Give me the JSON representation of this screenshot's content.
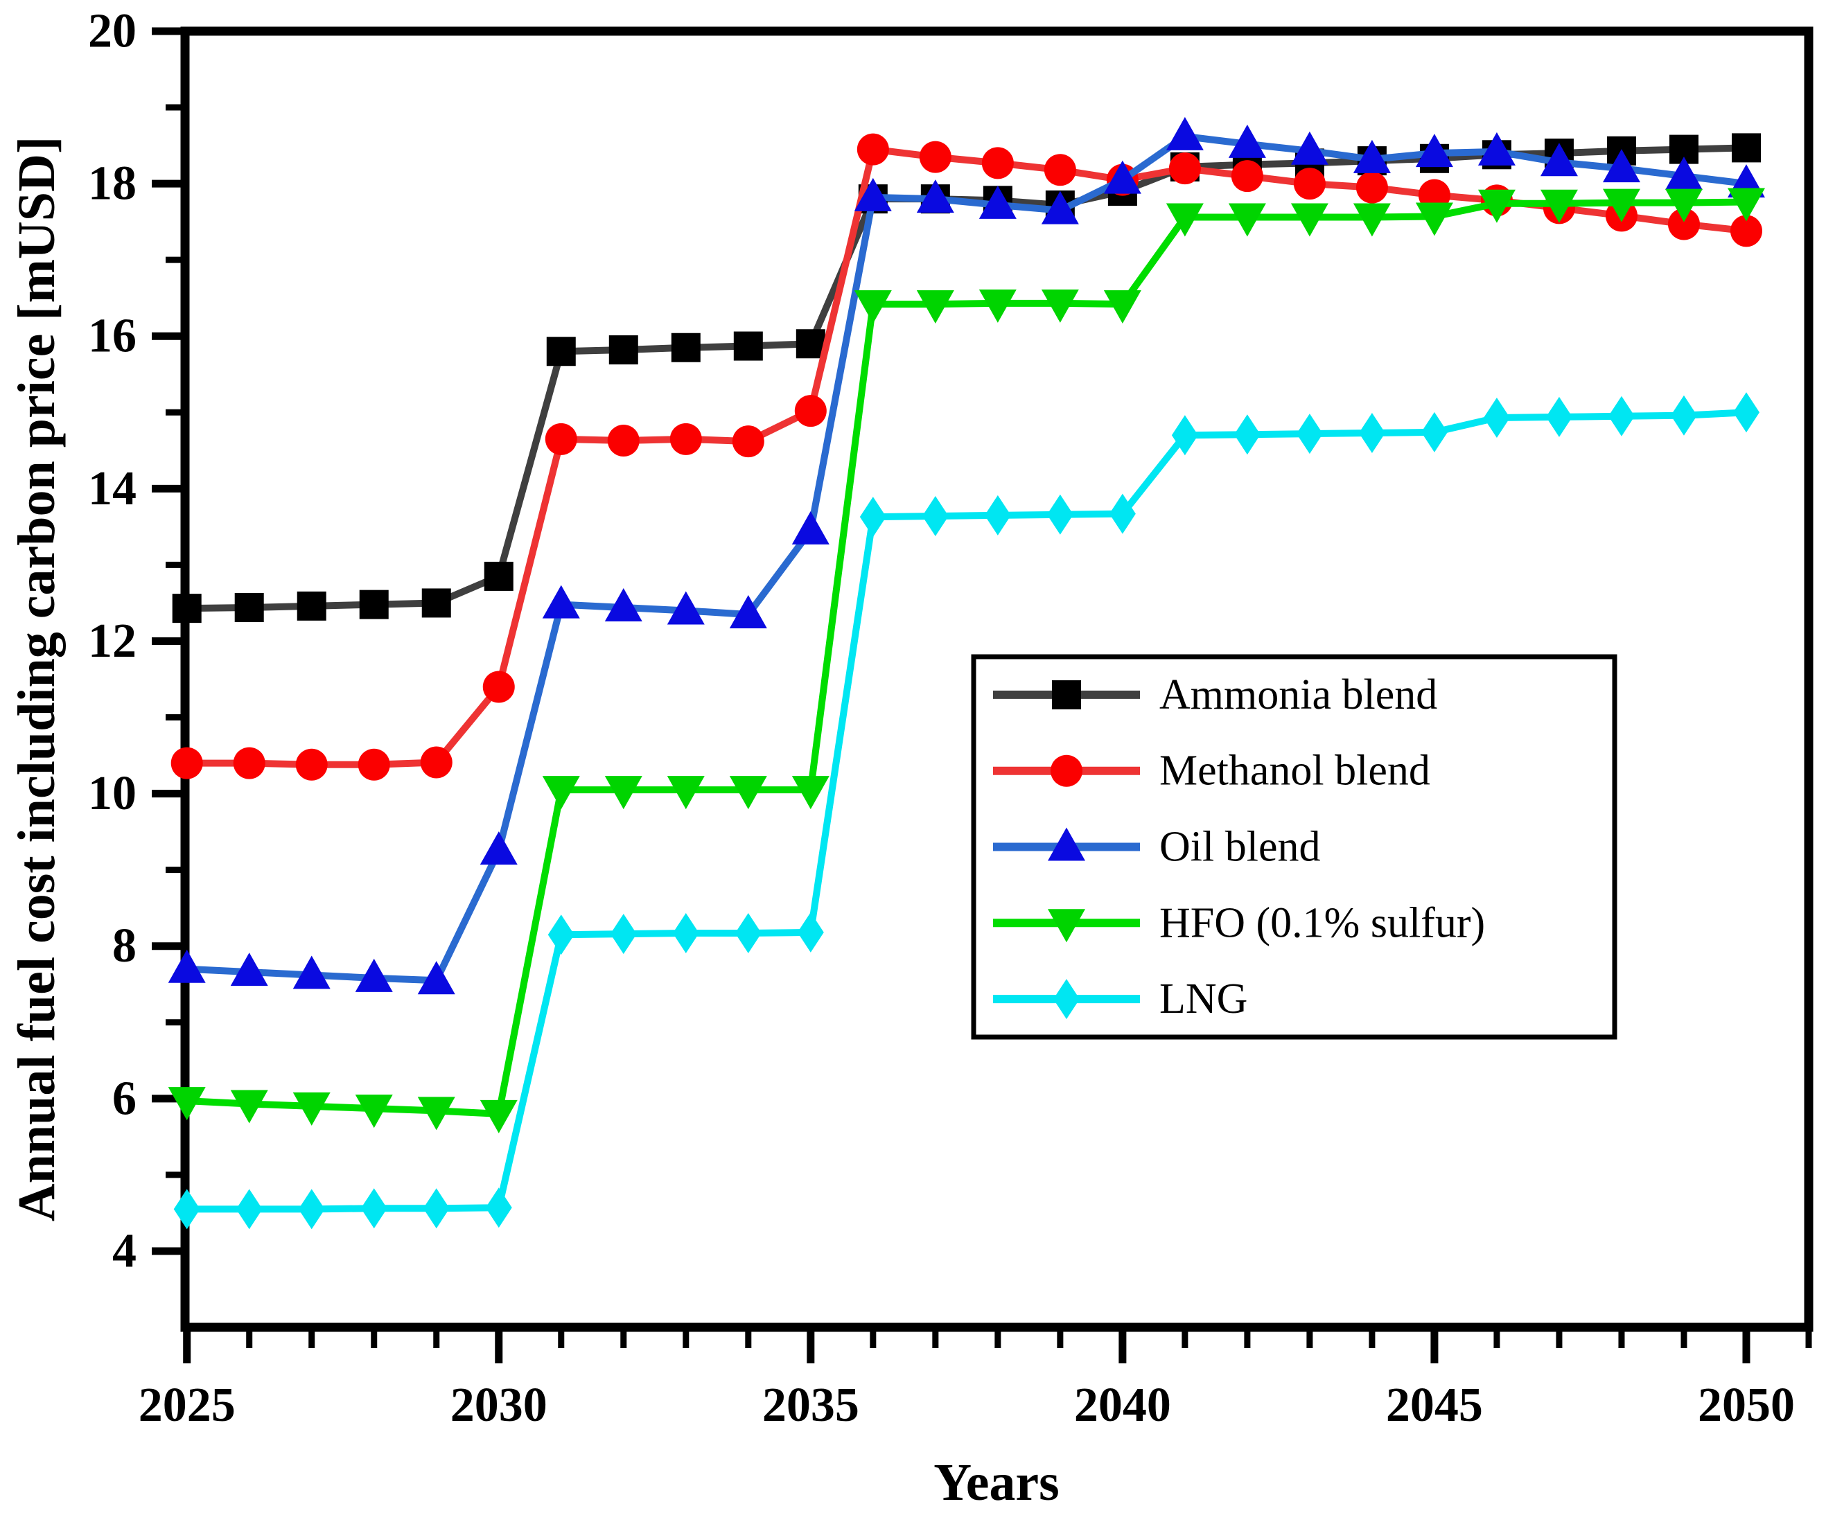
{
  "chart_data": {
    "type": "line",
    "title": "",
    "xlabel": "Years",
    "ylabel": "Annual fuel cost including carbon price [mUSD]",
    "xlim": [
      2024.97,
      2051.0
    ],
    "ylim": [
      3,
      20
    ],
    "grid": "off",
    "legend_position": "center-right",
    "x_major_ticks": [
      2025,
      2030,
      2035,
      2040,
      2045,
      2050
    ],
    "x_minor_tick_step": 1,
    "y_major_ticks": [
      4,
      6,
      8,
      10,
      12,
      14,
      16,
      18,
      20
    ],
    "y_minor_ticks": [
      5,
      7,
      9,
      11,
      13,
      15,
      17,
      19
    ],
    "x": [
      2025,
      2026,
      2027,
      2028,
      2029,
      2030,
      2031,
      2032,
      2033,
      2034,
      2035,
      2036,
      2037,
      2038,
      2039,
      2040,
      2041,
      2042,
      2043,
      2044,
      2045,
      2046,
      2047,
      2048,
      2049,
      2050
    ],
    "series": [
      {
        "name": "Ammonia blend",
        "marker": "square",
        "line_color": "#3f3f3f",
        "marker_color": "#000000",
        "values": [
          12.43,
          12.44,
          12.46,
          12.48,
          12.5,
          12.85,
          15.8,
          15.82,
          15.85,
          15.87,
          15.9,
          17.8,
          17.8,
          17.78,
          17.72,
          17.9,
          18.22,
          18.25,
          18.27,
          18.3,
          18.33,
          18.38,
          18.4,
          18.43,
          18.45,
          18.47
        ]
      },
      {
        "name": "Methanol blend",
        "marker": "circle",
        "line_color": "#ee3333",
        "marker_color": "#fb0000",
        "values": [
          10.4,
          10.4,
          10.38,
          10.38,
          10.41,
          11.4,
          14.65,
          14.63,
          14.65,
          14.62,
          15.02,
          18.45,
          18.35,
          18.27,
          18.18,
          18.05,
          18.2,
          18.1,
          18.0,
          17.95,
          17.85,
          17.78,
          17.68,
          17.58,
          17.47,
          17.38
        ]
      },
      {
        "name": "Oil blend",
        "marker": "triangle-up",
        "line_color": "#2a6ad0",
        "marker_color": "#0a0ae0",
        "values": [
          7.7,
          7.66,
          7.62,
          7.58,
          7.55,
          9.25,
          12.48,
          12.44,
          12.4,
          12.35,
          13.45,
          17.82,
          17.8,
          17.72,
          17.65,
          18.05,
          18.62,
          18.52,
          18.43,
          18.32,
          18.4,
          18.42,
          18.28,
          18.2,
          18.1,
          18.0
        ]
      },
      {
        "name": "HFO (0.1% sulfur)",
        "marker": "triangle-down",
        "line_color": "#00dd00",
        "marker_color": "#00d400",
        "values": [
          5.97,
          5.93,
          5.9,
          5.87,
          5.84,
          5.8,
          10.05,
          10.05,
          10.05,
          10.05,
          10.05,
          16.42,
          16.42,
          16.43,
          16.43,
          16.42,
          17.56,
          17.56,
          17.56,
          17.56,
          17.57,
          17.74,
          17.74,
          17.75,
          17.75,
          17.76
        ]
      },
      {
        "name": "LNG",
        "marker": "diamond",
        "line_color": "#00e6f2",
        "marker_color": "#00e6f2",
        "values": [
          4.55,
          4.55,
          4.55,
          4.56,
          4.56,
          4.57,
          8.15,
          8.16,
          8.17,
          8.17,
          8.18,
          13.63,
          13.64,
          13.65,
          13.66,
          13.67,
          14.7,
          14.71,
          14.72,
          14.73,
          14.74,
          14.93,
          14.94,
          14.95,
          14.96,
          15.0
        ]
      }
    ]
  }
}
